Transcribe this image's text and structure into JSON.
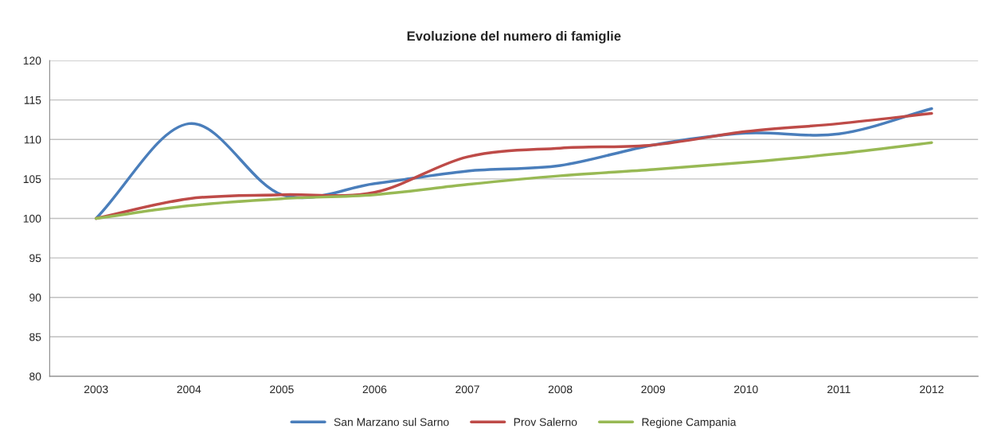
{
  "chart_data": {
    "type": "line",
    "title": "Evoluzione del numero di famiglie",
    "categories": [
      "2003",
      "2004",
      "2005",
      "2006",
      "2007",
      "2008",
      "2009",
      "2010",
      "2011",
      "2012"
    ],
    "series": [
      {
        "name": "San Marzano sul Sarno",
        "color": "#4a7ebb",
        "values": [
          100,
          112,
          103,
          104.4,
          106,
          106.7,
          109.3,
          110.8,
          110.7,
          113.9
        ]
      },
      {
        "name": "Prov Salerno",
        "color": "#be4b48",
        "values": [
          100,
          102.5,
          103,
          103.3,
          107.8,
          108.9,
          109.3,
          111,
          112,
          113.3
        ]
      },
      {
        "name": "Regione Campania",
        "color": "#98b954",
        "values": [
          100,
          101.6,
          102.5,
          103,
          104.3,
          105.4,
          106.2,
          107.1,
          108.2,
          109.6
        ]
      }
    ],
    "ylim": [
      80,
      120
    ],
    "yticks": [
      80,
      85,
      90,
      95,
      100,
      105,
      110,
      115,
      120
    ],
    "grid": "y",
    "legend": "bottom",
    "marker": "none",
    "line_style": "solid"
  }
}
